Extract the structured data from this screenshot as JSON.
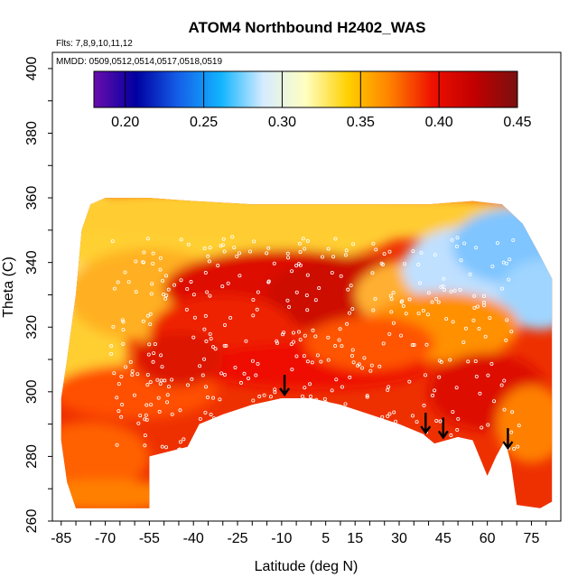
{
  "chart_data": {
    "type": "heatmap",
    "title": "ATOM4 Northbound H2402_WAS",
    "annotations": {
      "flights": "Flts: 7,8,9,10,11,12",
      "dates": "MMDD: 0509,0512,0514,0517,0518,0519"
    },
    "xlabel": "Latitude (deg N)",
    "ylabel": "Theta (C)",
    "xlim": [
      -88,
      85
    ],
    "ylim": [
      260,
      405
    ],
    "x_ticks": [
      -85,
      -70,
      -55,
      -40,
      -25,
      -10,
      5,
      15,
      30,
      45,
      60,
      75
    ],
    "y_ticks": [
      260,
      280,
      300,
      320,
      340,
      360,
      380,
      400
    ],
    "colorbar": {
      "range": [
        0.18,
        0.45
      ],
      "ticks": [
        0.2,
        0.25,
        0.3,
        0.35,
        0.4,
        0.45
      ],
      "placement": "top",
      "colors": [
        "#6a0dad",
        "#0000a0",
        "#1560e8",
        "#11b4ff",
        "#d6ecff",
        "#ffffc0",
        "#ffd000",
        "#ff8000",
        "#ee1000",
        "#c00000",
        "#7a1010"
      ]
    },
    "arrows_at_latitude": [
      -9,
      39,
      45,
      67
    ],
    "upper_boundary": [
      [
        -85,
        298
      ],
      [
        -83,
        310
      ],
      [
        -80,
        330
      ],
      [
        -78,
        350
      ],
      [
        -75,
        358
      ],
      [
        -70,
        360
      ],
      [
        -55,
        360
      ],
      [
        -40,
        359
      ],
      [
        -20,
        358
      ],
      [
        0,
        358
      ],
      [
        20,
        358
      ],
      [
        40,
        358
      ],
      [
        55,
        359
      ],
      [
        65,
        358
      ],
      [
        72,
        352
      ],
      [
        78,
        342
      ],
      [
        82,
        335
      ]
    ],
    "lower_boundary": [
      [
        -85,
        285
      ],
      [
        -83,
        272
      ],
      [
        -80,
        264
      ],
      [
        -55,
        264
      ],
      [
        -55,
        280
      ],
      [
        -42,
        283
      ],
      [
        -38,
        290
      ],
      [
        -30,
        293
      ],
      [
        -20,
        296
      ],
      [
        -10,
        298
      ],
      [
        0,
        298
      ],
      [
        10,
        296
      ],
      [
        20,
        293
      ],
      [
        30,
        290
      ],
      [
        38,
        287
      ],
      [
        42,
        284
      ],
      [
        50,
        286
      ],
      [
        55,
        285
      ],
      [
        60,
        274
      ],
      [
        63,
        280
      ],
      [
        66,
        285
      ],
      [
        68,
        278
      ],
      [
        70,
        265
      ],
      [
        78,
        264
      ],
      [
        82,
        266
      ]
    ]
  }
}
